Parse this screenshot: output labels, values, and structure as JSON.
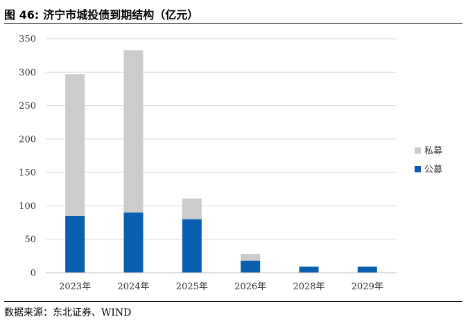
{
  "header": {
    "figure_number": "图 46:",
    "title": "济宁市城投债到期结构（亿元）"
  },
  "footer": {
    "source": "数据来源：东北证券、WIND"
  },
  "colors": {
    "public": "#0b5fb0",
    "private": "#cccccc",
    "grid": "#d9d9d9",
    "axis": "#bfbfbf"
  },
  "chart_data": {
    "type": "bar",
    "stacked": true,
    "categories": [
      "2023年",
      "2024年",
      "2025年",
      "2026年",
      "2028年",
      "2029年"
    ],
    "series": [
      {
        "name": "公募",
        "values": [
          85,
          90,
          80,
          18,
          9,
          9
        ]
      },
      {
        "name": "私募",
        "values": [
          212,
          243,
          31,
          10,
          0,
          0
        ]
      }
    ],
    "yticks": [
      "0",
      "50",
      "100",
      "150",
      "200",
      "250",
      "300",
      "350"
    ],
    "ylim": [
      0,
      350
    ],
    "grid": true,
    "legend_position": "right",
    "legend": [
      "私募",
      "公募"
    ]
  }
}
